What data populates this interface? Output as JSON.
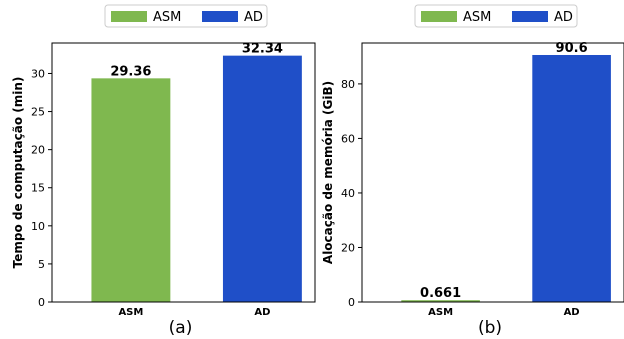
{
  "chart_data": [
    {
      "type": "bar",
      "categories": [
        "ASM",
        "AD"
      ],
      "values": [
        29.36,
        32.34
      ],
      "value_labels": [
        "29.36",
        "32.34"
      ],
      "colors": [
        "#7fb84f",
        "#1f4fc8"
      ],
      "legend": [
        "ASM",
        "AD"
      ],
      "legend_position": "top-center",
      "ylabel": "Tempo de computação (min)",
      "ylim": [
        0,
        34
      ],
      "yticks": [
        0,
        5,
        10,
        15,
        20,
        25,
        30
      ],
      "caption": "(a)",
      "grid": false
    },
    {
      "type": "bar",
      "categories": [
        "ASM",
        "AD"
      ],
      "values": [
        0.661,
        90.6
      ],
      "value_labels": [
        "0.661",
        "90.6"
      ],
      "colors": [
        "#7fb84f",
        "#1f4fc8"
      ],
      "legend": [
        "ASM",
        "AD"
      ],
      "legend_position": "top-center",
      "ylabel": "Alocação de memória (GiB)",
      "ylim": [
        0,
        95
      ],
      "yticks": [
        0,
        20,
        40,
        60,
        80
      ],
      "caption": "(b)",
      "grid": false
    }
  ]
}
